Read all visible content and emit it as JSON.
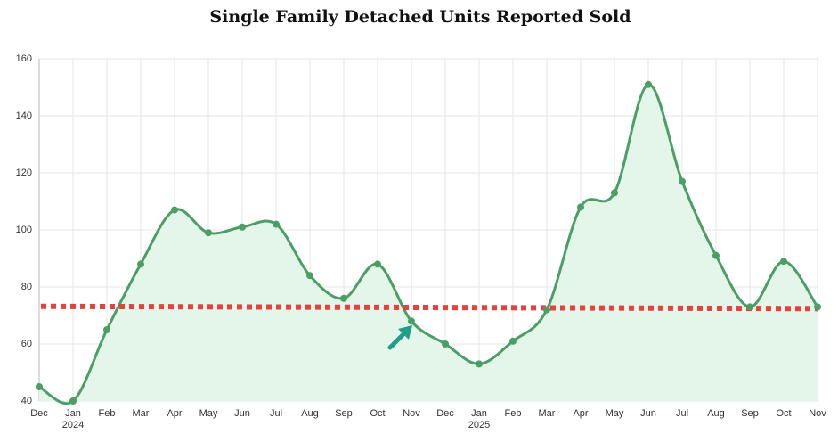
{
  "chart_data": {
    "type": "line",
    "title": "Single Family Detached Units Reported Sold",
    "categories": [
      "Dec",
      "Jan",
      "Feb",
      "Mar",
      "Apr",
      "May",
      "Jun",
      "Jul",
      "Aug",
      "Sep",
      "Oct",
      "Nov",
      "Dec",
      "Jan",
      "Feb",
      "Mar",
      "Apr",
      "May",
      "Jun",
      "Jul",
      "Aug",
      "Sep",
      "Oct",
      "Nov"
    ],
    "category_years": [
      null,
      "2024",
      null,
      null,
      null,
      null,
      null,
      null,
      null,
      null,
      null,
      null,
      null,
      "2025",
      null,
      null,
      null,
      null,
      null,
      null,
      null,
      null,
      null,
      null
    ],
    "series": [
      {
        "color": "#4a9e66",
        "fill": "#e4f6ea",
        "values": [
          45,
          40,
          65,
          88,
          107,
          99,
          101,
          102,
          84,
          76,
          88,
          68,
          60,
          53,
          61,
          72,
          108,
          113,
          151,
          117,
          91,
          73,
          89,
          73
        ]
      }
    ],
    "reference_line": {
      "color": "#e8403a",
      "values": [
        73.2,
        72.4
      ]
    },
    "ylim": [
      40,
      160
    ],
    "yticks": [
      40,
      60,
      80,
      100,
      120,
      140,
      160
    ],
    "grid": true
  }
}
